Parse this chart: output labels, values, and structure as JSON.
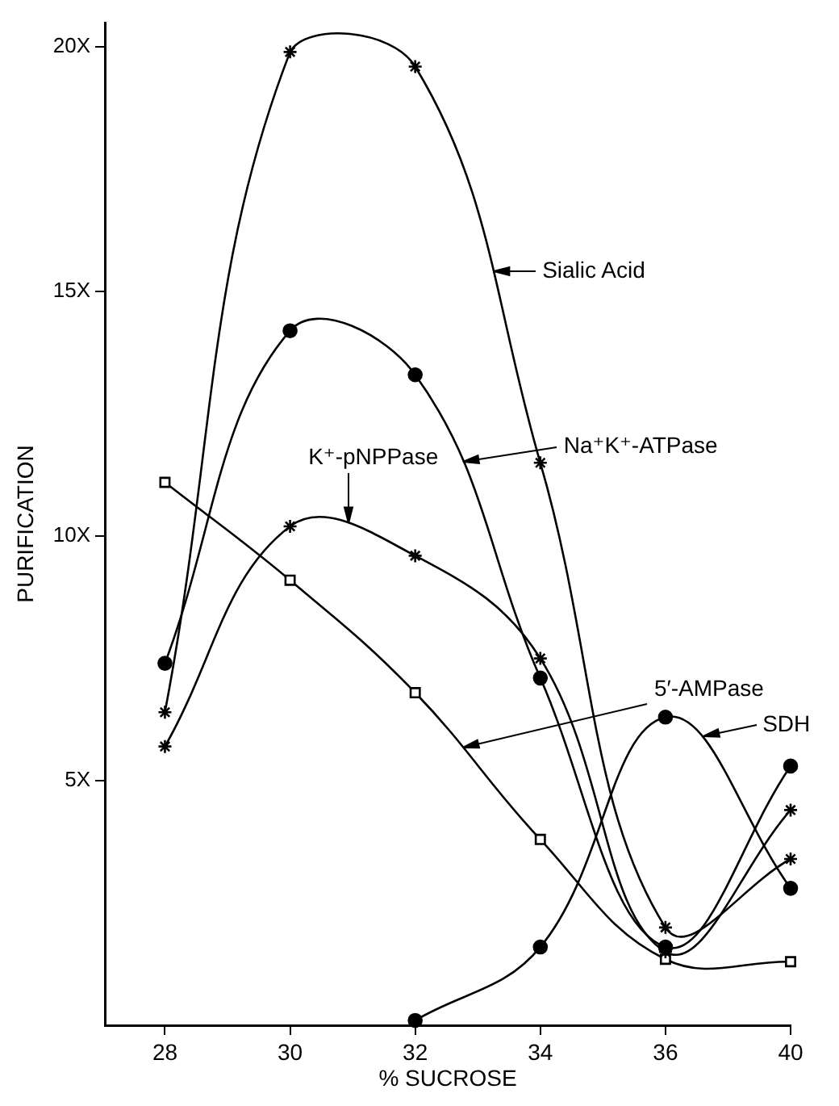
{
  "chart_data": {
    "type": "line",
    "xlabel": "% SUCROSE",
    "ylabel": "PURIFICATION",
    "categories": [
      "28",
      "30",
      "32",
      "34",
      "36",
      "40"
    ],
    "ylim": [
      0,
      20.5
    ],
    "yticks": [
      {
        "value": 5,
        "label": "5X"
      },
      {
        "value": 10,
        "label": "10X"
      },
      {
        "value": 15,
        "label": "15X"
      },
      {
        "value": 20,
        "label": "20X"
      }
    ],
    "grid": false,
    "legend": "right",
    "line_style": "solid",
    "series": [
      {
        "name": "Sialic Acid",
        "color": "#000000",
        "marker": "cross",
        "values": [
          6.4,
          19.9,
          19.6,
          11.5,
          2.0,
          3.4
        ]
      },
      {
        "name": "Na⁺K⁺-ATPase",
        "color": "#000000",
        "marker": "circle",
        "values": [
          7.4,
          14.2,
          13.3,
          7.1,
          1.6,
          5.3
        ]
      },
      {
        "name": "K⁺-pNPPase",
        "color": "#000000",
        "marker": "cross",
        "values": [
          5.7,
          10.2,
          9.6,
          7.5,
          1.5,
          4.4
        ]
      },
      {
        "name": "5′-AMPase",
        "color": "#000000",
        "marker": "square",
        "values": [
          11.1,
          9.1,
          6.8,
          3.8,
          1.35,
          1.3
        ]
      },
      {
        "name": "SDH",
        "color": "#000000",
        "marker": "circle",
        "values": [
          null,
          null,
          0.1,
          1.6,
          6.3,
          2.8
        ]
      }
    ]
  }
}
